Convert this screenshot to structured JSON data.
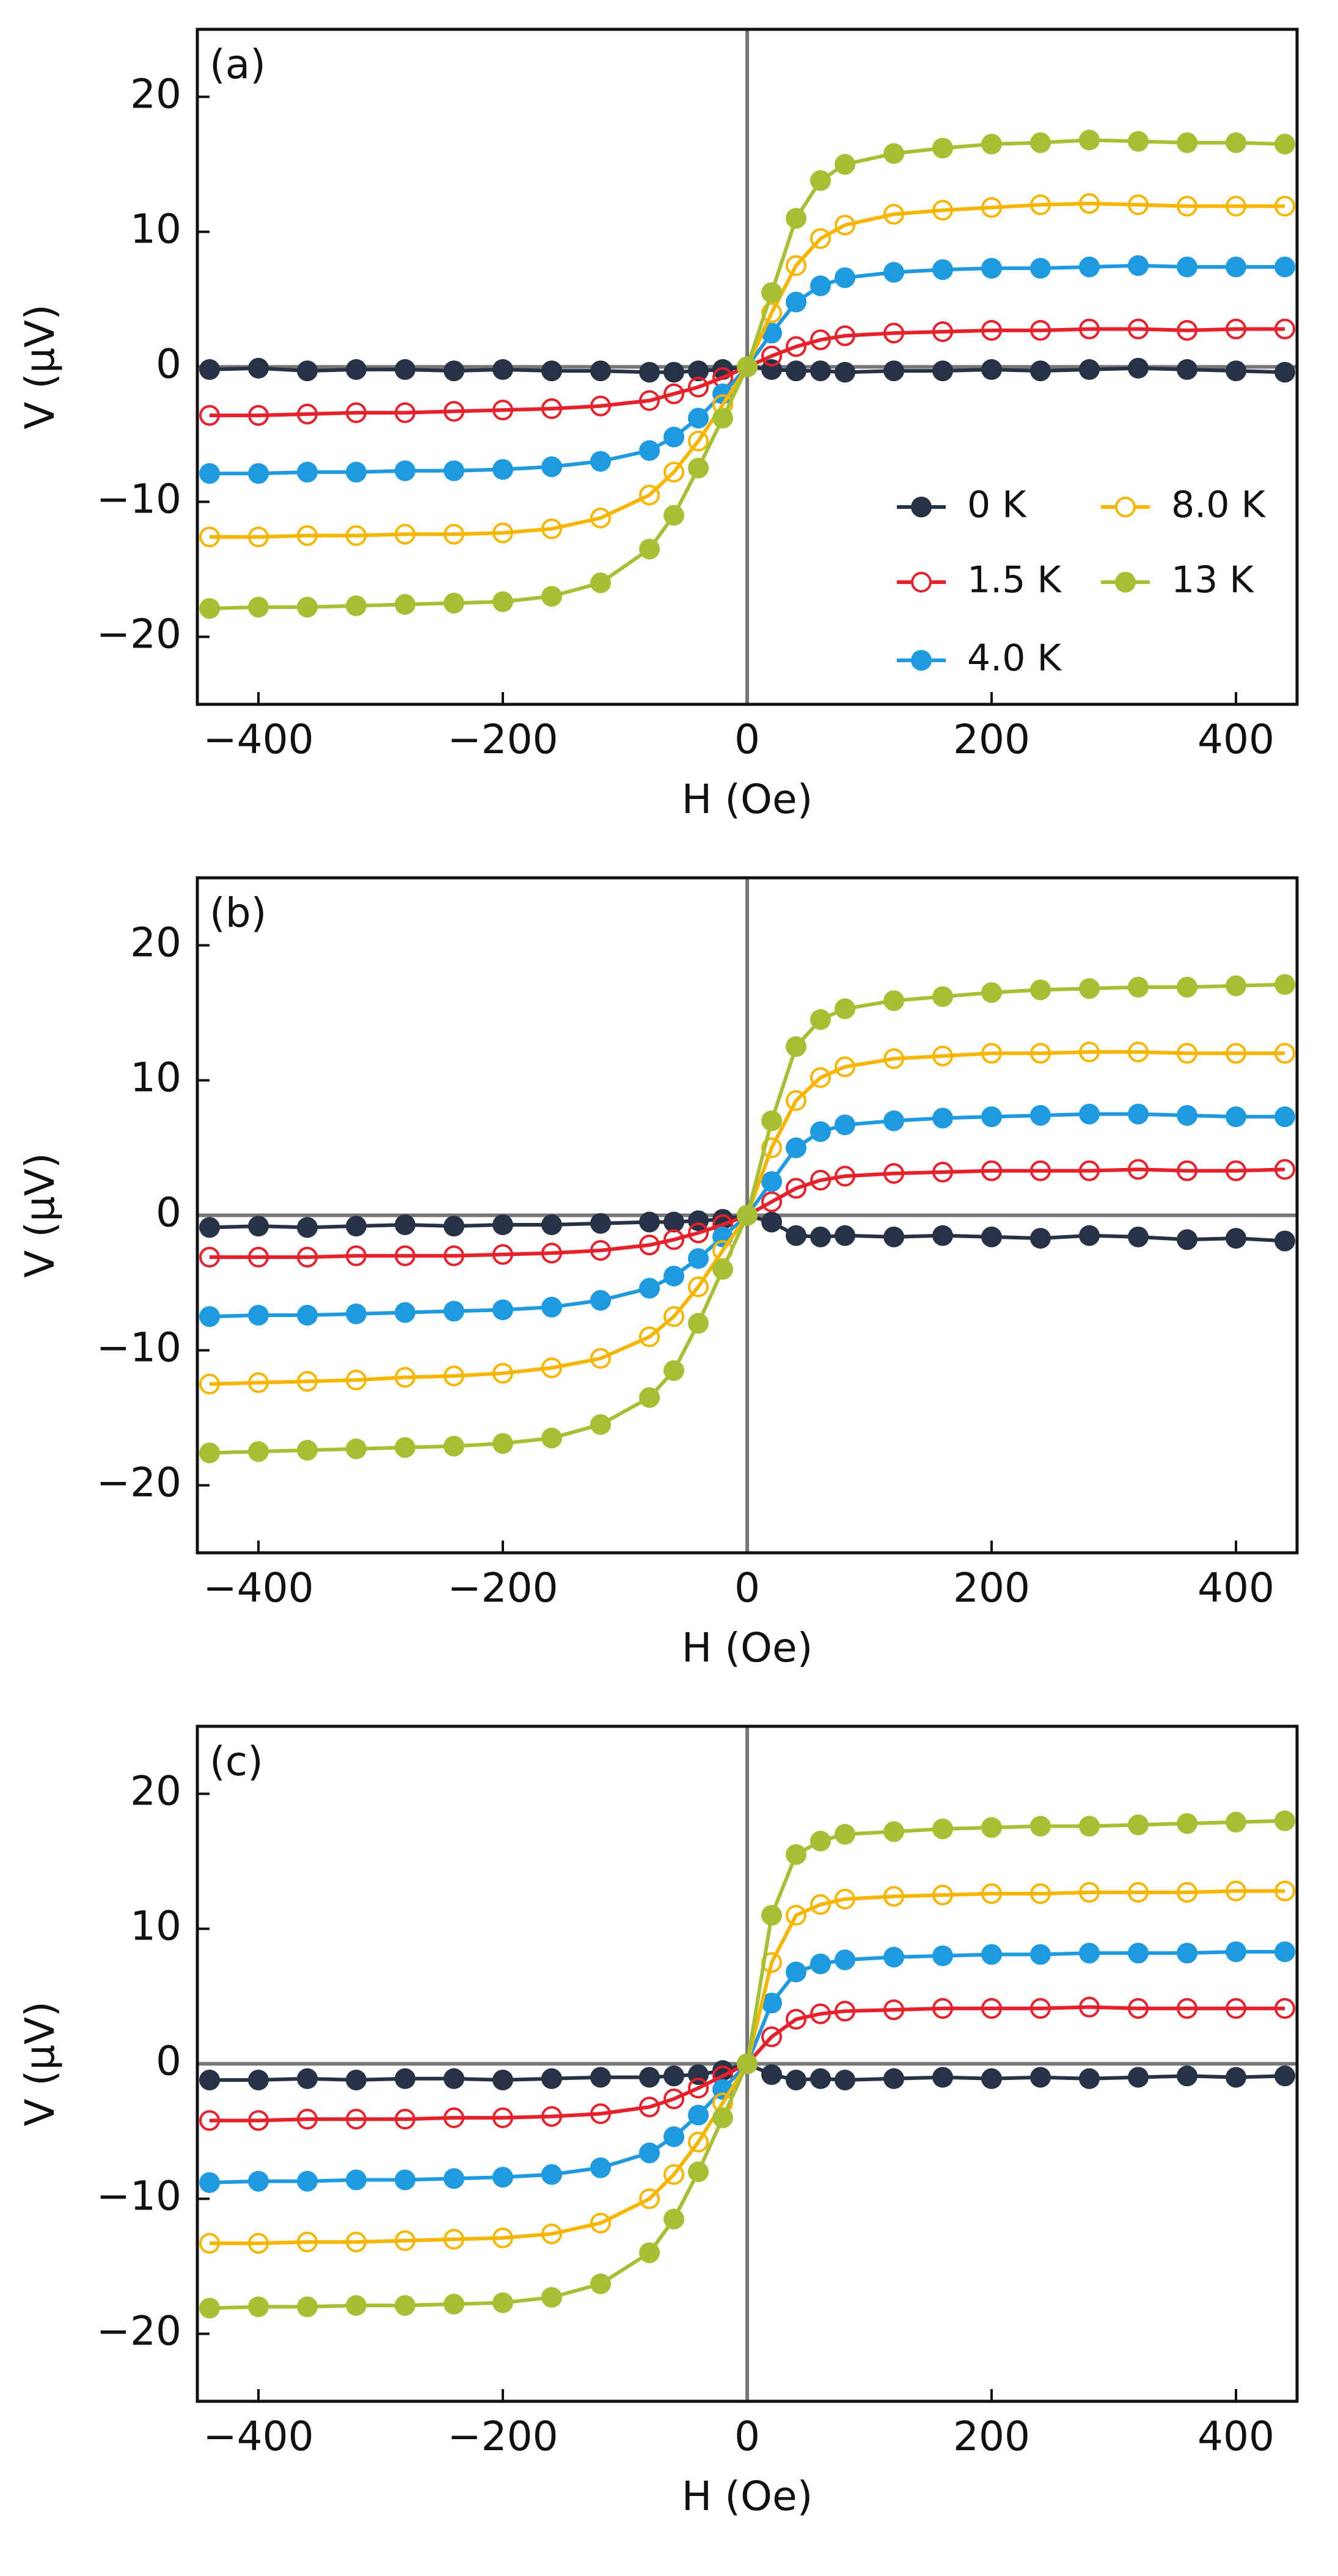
{
  "chart_data": [
    {
      "type": "line",
      "panel_label": "(a)",
      "x_label": "H (Oe)",
      "y_label": "V (μV)",
      "legend": "lower right",
      "xlim": [
        -450,
        450
      ],
      "ylim": [
        -25,
        25
      ],
      "xticks": [
        {
          "value": -400,
          "label": "−400"
        },
        {
          "value": -200,
          "label": "−200"
        },
        0,
        200,
        400
      ],
      "yticks": [
        {
          "value": -20,
          "label": "−20"
        },
        {
          "value": -10,
          "label": "−10"
        },
        0,
        10,
        20
      ],
      "x": [
        -440,
        -400,
        -360,
        -320,
        -280,
        -240,
        -200,
        -160,
        -120,
        -80,
        -60,
        -40,
        -20,
        0,
        20,
        40,
        60,
        80,
        120,
        160,
        200,
        240,
        280,
        320,
        360,
        400,
        440
      ],
      "series": [
        {
          "name": "0 K",
          "color": "#263346",
          "marker": "filled",
          "values": [
            -0.2,
            -0.1,
            -0.3,
            -0.2,
            -0.2,
            -0.3,
            -0.2,
            -0.3,
            -0.3,
            -0.4,
            -0.4,
            -0.3,
            -0.2,
            0,
            -0.2,
            -0.3,
            -0.3,
            -0.4,
            -0.3,
            -0.3,
            -0.2,
            -0.3,
            -0.2,
            -0.1,
            -0.2,
            -0.3,
            -0.4
          ]
        },
        {
          "name": "1.5 K",
          "color": "#e8202a",
          "marker": "open",
          "values": [
            -3.6,
            -3.6,
            -3.5,
            -3.4,
            -3.4,
            -3.3,
            -3.2,
            -3.1,
            -2.9,
            -2.5,
            -2.0,
            -1.5,
            -0.8,
            0,
            0.8,
            1.5,
            2.0,
            2.3,
            2.5,
            2.6,
            2.7,
            2.7,
            2.8,
            2.8,
            2.7,
            2.8,
            2.8
          ]
        },
        {
          "name": "4.0 K",
          "color": "#1e9be0",
          "marker": "filled",
          "values": [
            -7.9,
            -7.9,
            -7.8,
            -7.8,
            -7.7,
            -7.7,
            -7.6,
            -7.4,
            -7.0,
            -6.2,
            -5.2,
            -3.8,
            -2.0,
            0,
            2.5,
            4.8,
            6.0,
            6.6,
            7.0,
            7.2,
            7.3,
            7.3,
            7.4,
            7.5,
            7.4,
            7.4,
            7.4
          ]
        },
        {
          "name": "8.0 K",
          "color": "#f7b500",
          "marker": "open",
          "values": [
            -12.6,
            -12.6,
            -12.5,
            -12.5,
            -12.4,
            -12.4,
            -12.3,
            -12.0,
            -11.2,
            -9.5,
            -7.8,
            -5.5,
            -2.8,
            0,
            4.0,
            7.5,
            9.5,
            10.5,
            11.3,
            11.6,
            11.8,
            12.0,
            12.1,
            12.0,
            11.9,
            11.9,
            11.9
          ]
        },
        {
          "name": "13 K",
          "color": "#a8bf33",
          "marker": "filled",
          "values": [
            -17.9,
            -17.8,
            -17.8,
            -17.7,
            -17.6,
            -17.5,
            -17.4,
            -17.0,
            -16.0,
            -13.5,
            -11.0,
            -7.5,
            -3.8,
            0,
            5.5,
            11.0,
            13.8,
            15.0,
            15.8,
            16.2,
            16.5,
            16.6,
            16.8,
            16.7,
            16.6,
            16.6,
            16.5
          ]
        }
      ]
    },
    {
      "type": "line",
      "panel_label": "(b)",
      "x_label": "H (Oe)",
      "y_label": "V (μV)",
      "xlim": [
        -450,
        450
      ],
      "ylim": [
        -25,
        25
      ],
      "xticks": [
        {
          "value": -400,
          "label": "−400"
        },
        {
          "value": -200,
          "label": "−200"
        },
        0,
        200,
        400
      ],
      "yticks": [
        {
          "value": -20,
          "label": "−20"
        },
        {
          "value": -10,
          "label": "−10"
        },
        0,
        10,
        20
      ],
      "x": [
        -440,
        -400,
        -360,
        -320,
        -280,
        -240,
        -200,
        -160,
        -120,
        -80,
        -60,
        -40,
        -20,
        0,
        20,
        40,
        60,
        80,
        120,
        160,
        200,
        240,
        280,
        320,
        360,
        400,
        440
      ],
      "series": [
        {
          "color": "#263346",
          "marker": "filled",
          "values": [
            -0.9,
            -0.8,
            -0.9,
            -0.8,
            -0.7,
            -0.8,
            -0.7,
            -0.7,
            -0.6,
            -0.5,
            -0.5,
            -0.4,
            -0.3,
            0,
            -0.5,
            -1.5,
            -1.6,
            -1.5,
            -1.6,
            -1.5,
            -1.6,
            -1.7,
            -1.5,
            -1.6,
            -1.8,
            -1.7,
            -1.9
          ]
        },
        {
          "color": "#e8202a",
          "marker": "open",
          "values": [
            -3.1,
            -3.1,
            -3.1,
            -3.0,
            -3.0,
            -3.0,
            -2.9,
            -2.8,
            -2.6,
            -2.2,
            -1.8,
            -1.3,
            -0.7,
            0,
            1.0,
            2.0,
            2.6,
            2.9,
            3.1,
            3.2,
            3.3,
            3.3,
            3.3,
            3.4,
            3.3,
            3.3,
            3.4
          ]
        },
        {
          "color": "#1e9be0",
          "marker": "filled",
          "values": [
            -7.5,
            -7.4,
            -7.4,
            -7.3,
            -7.2,
            -7.1,
            -7.0,
            -6.8,
            -6.3,
            -5.4,
            -4.5,
            -3.2,
            -1.6,
            0,
            2.5,
            5.0,
            6.2,
            6.7,
            7.0,
            7.2,
            7.3,
            7.4,
            7.5,
            7.5,
            7.4,
            7.3,
            7.3
          ]
        },
        {
          "color": "#f7b500",
          "marker": "open",
          "values": [
            -12.5,
            -12.4,
            -12.3,
            -12.2,
            -12.0,
            -11.9,
            -11.7,
            -11.3,
            -10.6,
            -9.0,
            -7.5,
            -5.3,
            -2.6,
            0,
            5.0,
            8.5,
            10.2,
            11.0,
            11.6,
            11.8,
            12.0,
            12.0,
            12.1,
            12.1,
            12.0,
            12.0,
            12.0
          ]
        },
        {
          "color": "#a8bf33",
          "marker": "filled",
          "values": [
            -17.6,
            -17.5,
            -17.4,
            -17.3,
            -17.2,
            -17.1,
            -16.9,
            -16.5,
            -15.5,
            -13.5,
            -11.5,
            -8.0,
            -4.0,
            0,
            7.0,
            12.5,
            14.5,
            15.3,
            15.9,
            16.2,
            16.5,
            16.7,
            16.8,
            16.9,
            16.9,
            17.0,
            17.1
          ]
        }
      ]
    },
    {
      "type": "line",
      "panel_label": "(c)",
      "x_label": "H (Oe)",
      "y_label": "V (μV)",
      "xlim": [
        -450,
        450
      ],
      "ylim": [
        -25,
        25
      ],
      "xticks": [
        {
          "value": -400,
          "label": "−400"
        },
        {
          "value": -200,
          "label": "−200"
        },
        0,
        200,
        400
      ],
      "yticks": [
        {
          "value": -20,
          "label": "−20"
        },
        {
          "value": -10,
          "label": "−10"
        },
        0,
        10,
        20
      ],
      "x": [
        -440,
        -400,
        -360,
        -320,
        -280,
        -240,
        -200,
        -160,
        -120,
        -80,
        -60,
        -40,
        -20,
        0,
        20,
        40,
        60,
        80,
        120,
        160,
        200,
        240,
        280,
        320,
        360,
        400,
        440
      ],
      "series": [
        {
          "color": "#263346",
          "marker": "filled",
          "values": [
            -1.2,
            -1.2,
            -1.1,
            -1.2,
            -1.1,
            -1.1,
            -1.2,
            -1.1,
            -1.0,
            -1.0,
            -0.9,
            -0.8,
            -0.5,
            0,
            -0.8,
            -1.2,
            -1.1,
            -1.2,
            -1.1,
            -1.0,
            -1.1,
            -1.0,
            -1.1,
            -1.0,
            -0.9,
            -1.0,
            -0.9
          ]
        },
        {
          "color": "#e8202a",
          "marker": "open",
          "values": [
            -4.2,
            -4.2,
            -4.1,
            -4.1,
            -4.1,
            -4.0,
            -4.0,
            -3.9,
            -3.7,
            -3.2,
            -2.6,
            -1.8,
            -0.9,
            0,
            2.0,
            3.3,
            3.7,
            3.9,
            4.0,
            4.1,
            4.1,
            4.1,
            4.2,
            4.1,
            4.1,
            4.1,
            4.1
          ]
        },
        {
          "color": "#1e9be0",
          "marker": "filled",
          "values": [
            -8.8,
            -8.7,
            -8.7,
            -8.6,
            -8.6,
            -8.5,
            -8.4,
            -8.2,
            -7.7,
            -6.6,
            -5.4,
            -3.8,
            -1.9,
            0,
            4.5,
            6.8,
            7.4,
            7.7,
            7.9,
            8.0,
            8.1,
            8.1,
            8.2,
            8.2,
            8.2,
            8.3,
            8.3
          ]
        },
        {
          "color": "#f7b500",
          "marker": "open",
          "values": [
            -13.3,
            -13.3,
            -13.2,
            -13.2,
            -13.1,
            -13.0,
            -12.9,
            -12.6,
            -11.8,
            -10.0,
            -8.2,
            -5.8,
            -2.9,
            0,
            7.5,
            11.0,
            11.8,
            12.2,
            12.4,
            12.5,
            12.6,
            12.6,
            12.7,
            12.7,
            12.7,
            12.8,
            12.8
          ]
        },
        {
          "color": "#a8bf33",
          "marker": "filled",
          "values": [
            -18.1,
            -18.0,
            -18.0,
            -17.9,
            -17.9,
            -17.8,
            -17.7,
            -17.3,
            -16.3,
            -14.0,
            -11.5,
            -8.0,
            -4.0,
            0,
            11.0,
            15.5,
            16.5,
            17.0,
            17.2,
            17.4,
            17.5,
            17.6,
            17.6,
            17.7,
            17.8,
            17.9,
            18.0
          ]
        }
      ]
    }
  ]
}
